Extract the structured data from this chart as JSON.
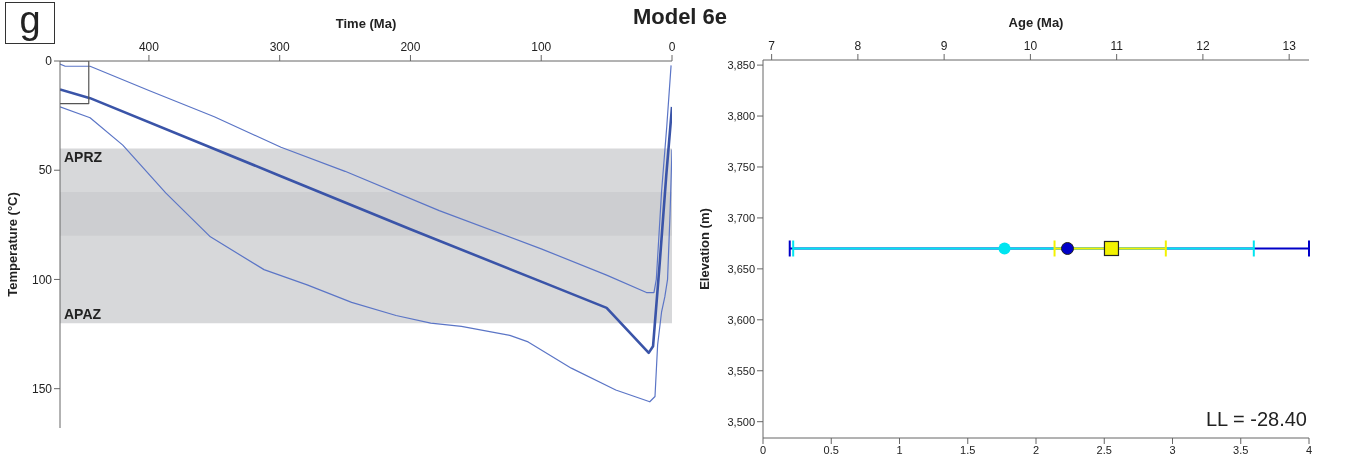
{
  "chart_data": [
    {
      "type": "line",
      "title": "Model 6e",
      "xlabel": "Time (Ma)",
      "ylabel": "Temperature (°C)",
      "xlim": [
        468,
        0
      ],
      "xticks": [
        400,
        300,
        200,
        100,
        0
      ],
      "ylim": [
        168,
        0
      ],
      "yticks": [
        0,
        50,
        100,
        150
      ],
      "grid": false,
      "legend": false,
      "marker": "none",
      "line_style": "solid",
      "annotations": [
        "g"
      ],
      "bands": [
        {
          "axis": "y",
          "from": 40,
          "to": 80,
          "label": "APRZ",
          "color": "#c9cbce"
        },
        {
          "axis": "y",
          "from": 60,
          "to": 120,
          "label": "APAZ",
          "color": "#c9cbce"
        }
      ],
      "series": [
        {
          "color": "#5b75c6",
          "x": [
            468,
            464,
            445,
            400,
            350,
            299,
            250,
            178,
            100,
            50,
            19.5,
            13.8,
            12,
            8,
            4,
            0.7
          ],
          "values": [
            1.4,
            2.4,
            2.4,
            13.5,
            25.5,
            39.5,
            50.5,
            68.5,
            86,
            98,
            106,
            106,
            100,
            60,
            30,
            2
          ]
        },
        {
          "color": "#3a54a8",
          "x": [
            468,
            445,
            300,
            200,
            100,
            50,
            17.8,
            14.5,
            9.4,
            4.4,
            0
          ],
          "values": [
            13,
            17,
            52.5,
            77,
            101,
            113,
            133.6,
            130.6,
            92.5,
            52.5,
            21
          ]
        },
        {
          "type": "line",
          "color": "#555555",
          "x": [
            468,
            446,
            446,
            468
          ],
          "values": [
            19.5,
            19.5,
            0,
            0
          ]
        },
        {
          "color": "#5b75c6",
          "x": [
            468,
            445,
            420,
            387,
            353,
            312,
            279,
            245,
            211,
            184.5,
            161,
            124,
            110,
            77,
            43,
            17,
            13,
            11,
            8,
            5.5,
            3.4,
            1.5,
            0
          ],
          "values": [
            21,
            26,
            38.5,
            60.5,
            80.5,
            95.5,
            102.5,
            110.5,
            116.5,
            120,
            121.5,
            125.6,
            128.6,
            140.6,
            150.6,
            156,
            153.6,
            130,
            115,
            108,
            100,
            70,
            40.5
          ]
        }
      ]
    },
    {
      "type": "scatter",
      "x2label": "Age (Ma)",
      "ylabel": "Elevation (m)",
      "xlim": [
        0,
        4
      ],
      "xticks": [
        0,
        0.5,
        1,
        1.5,
        2,
        2.5,
        3,
        3.5,
        4
      ],
      "x2lim": [
        6.9,
        13.23
      ],
      "x2ticks": [
        7,
        8,
        9,
        10,
        11,
        12,
        13
      ],
      "ylim": [
        3484,
        3855
      ],
      "yticks": [
        {
          "value": 3500,
          "label": "3,500"
        },
        {
          "value": 3550,
          "label": "3,550"
        },
        {
          "value": 3600,
          "label": "3,600"
        },
        {
          "value": 3650,
          "label": "3,650"
        },
        {
          "value": 3700,
          "label": "3,700"
        },
        {
          "value": 3750,
          "label": "3,750"
        },
        {
          "value": 3800,
          "label": "3,800"
        },
        {
          "value": 3850,
          "label": "3,850"
        }
      ],
      "grid": false,
      "legend": false,
      "annotations": [
        "LL = -28.40"
      ],
      "series": [
        {
          "axis": "x2",
          "color": "#0000c8",
          "marker": "circle",
          "x": [
            10.43
          ],
          "values": [
            3670
          ],
          "xerrors": [
            [
              7.21,
              13.23
            ]
          ]
        },
        {
          "axis": "x2",
          "color": "#00e5f0",
          "marker": "circle",
          "x": [
            9.7
          ],
          "values": [
            3670
          ],
          "xerrors": [
            [
              7.25,
              12.59
            ]
          ]
        },
        {
          "axis": "x2",
          "color": "#f2f200",
          "marker": "square",
          "x": [
            10.94
          ],
          "values": [
            3670
          ],
          "xerrors": [
            [
              10.28,
              11.57
            ]
          ]
        }
      ]
    }
  ]
}
